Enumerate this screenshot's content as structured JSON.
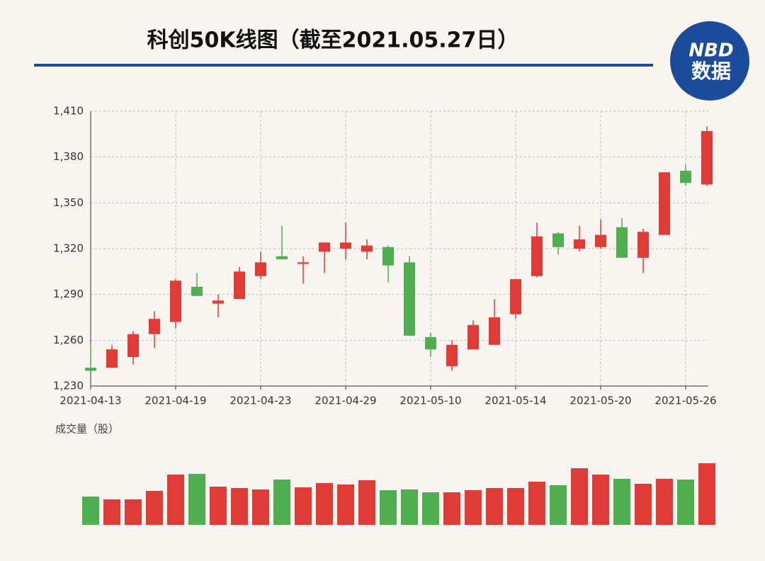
{
  "chart_data": {
    "type": "candlestick",
    "title": "科创50K线图（截至2021.05.27日）",
    "logo": [
      "NBD",
      "数据"
    ],
    "volume_label": "成交量（股）",
    "categories": [
      "2021-04-13",
      null,
      null,
      null,
      "2021-04-19",
      null,
      null,
      null,
      "2021-04-23",
      null,
      null,
      null,
      "2021-04-29",
      null,
      null,
      null,
      "2021-05-10",
      null,
      null,
      null,
      "2021-05-14",
      null,
      null,
      null,
      "2021-05-20",
      null,
      null,
      null,
      "2021-05-26",
      null
    ],
    "open": [
      1242,
      1242,
      1249,
      1264,
      1272,
      1295,
      1284,
      1287,
      1302,
      1315,
      1310,
      1318,
      1320,
      1318,
      1321,
      1311,
      1262,
      1243,
      1254,
      1257,
      1277,
      1302,
      1330,
      1320,
      1321,
      1334,
      1314,
      1329,
      1371,
      1362
    ],
    "high": [
      1258,
      1257,
      1266,
      1279,
      1300,
      1304,
      1290,
      1308,
      1318,
      1335,
      1315,
      1324,
      1337,
      1326,
      1322,
      1315,
      1265,
      1260,
      1273,
      1287,
      1300,
      1337,
      1331,
      1335,
      1339,
      1340,
      1333,
      1370,
      1375,
      1400
    ],
    "low": [
      1240,
      1242,
      1244,
      1255,
      1268,
      1289,
      1275,
      1287,
      1300,
      1313,
      1297,
      1304,
      1313,
      1313,
      1298,
      1263,
      1249,
      1240,
      1254,
      1257,
      1274,
      1301,
      1316,
      1318,
      1320,
      1314,
      1304,
      1329,
      1361,
      1361
    ],
    "close": [
      1240,
      1254,
      1264,
      1274,
      1299,
      1289,
      1286,
      1305,
      1311,
      1313,
      1311,
      1324,
      1324,
      1322,
      1309,
      1263,
      1254,
      1257,
      1270,
      1275,
      1300,
      1328,
      1321,
      1326,
      1329,
      1314,
      1331,
      1370,
      1363,
      1397
    ],
    "volume": [
      40,
      36,
      36,
      48,
      71,
      72,
      54,
      52,
      50,
      64,
      53,
      59,
      57,
      63,
      49,
      50,
      46,
      46,
      49,
      52,
      52,
      61,
      56,
      80,
      71,
      65,
      58,
      65,
      64,
      87
    ],
    "up_color": "#e03c37",
    "down_color": "#4fae4f",
    "ylim": [
      1230,
      1410
    ],
    "yticks": [
      {
        "value": 1230,
        "label": "1,230"
      },
      {
        "value": 1260,
        "label": "1,260"
      },
      {
        "value": 1290,
        "label": "1,290"
      },
      {
        "value": 1320,
        "label": "1,320"
      },
      {
        "value": 1350,
        "label": "1,350"
      },
      {
        "value": 1380,
        "label": "1,380"
      },
      {
        "value": 1410,
        "label": "1,410"
      }
    ],
    "grid": true
  }
}
